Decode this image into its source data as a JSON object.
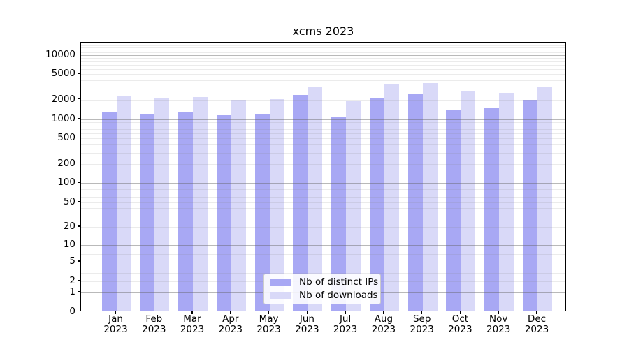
{
  "chart_data": {
    "type": "bar",
    "title": "xcms 2023",
    "categories": [
      "Jan",
      "Feb",
      "Mar",
      "Apr",
      "May",
      "Jun",
      "Jul",
      "Aug",
      "Sep",
      "Oct",
      "Nov",
      "Dec"
    ],
    "category_year": "2023",
    "series": [
      {
        "name": "Nb of distinct IPs",
        "color": "#a8a8f4",
        "values": [
          1300,
          1210,
          1260,
          1140,
          1200,
          2370,
          1100,
          2100,
          2520,
          1385,
          1480,
          2000
        ]
      },
      {
        "name": "Nb of downloads",
        "color": "#d9d9f8",
        "values": [
          2320,
          2100,
          2220,
          2010,
          2060,
          3220,
          1900,
          3450,
          3620,
          2700,
          2570,
          3220
        ]
      }
    ],
    "yscale": "log(1+v)",
    "yticks": [
      10000,
      5000,
      2000,
      1000,
      500,
      200,
      100,
      50,
      20,
      10,
      5,
      2,
      1,
      0
    ],
    "ylim": [
      0,
      14600
    ],
    "xlabel": "",
    "ylabel": "",
    "grid": "major decade lines + minor 2-9 per decade, drawn over bars",
    "legend_position": "lower center"
  },
  "colors": {
    "major_grid": "#b3b3b3",
    "minor_grid": "#e6e6e6",
    "axis": "#000000",
    "background": "#ffffff"
  }
}
